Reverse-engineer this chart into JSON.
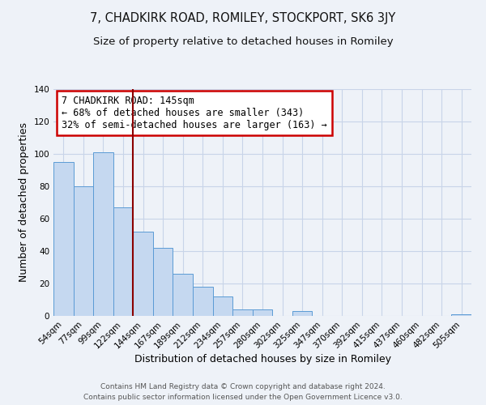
{
  "title": "7, CHADKIRK ROAD, ROMILEY, STOCKPORT, SK6 3JY",
  "subtitle": "Size of property relative to detached houses in Romiley",
  "xlabel": "Distribution of detached houses by size in Romiley",
  "ylabel": "Number of detached properties",
  "categories": [
    "54sqm",
    "77sqm",
    "99sqm",
    "122sqm",
    "144sqm",
    "167sqm",
    "189sqm",
    "212sqm",
    "234sqm",
    "257sqm",
    "280sqm",
    "302sqm",
    "325sqm",
    "347sqm",
    "370sqm",
    "392sqm",
    "415sqm",
    "437sqm",
    "460sqm",
    "482sqm",
    "505sqm"
  ],
  "values": [
    95,
    80,
    101,
    67,
    52,
    42,
    26,
    18,
    12,
    4,
    4,
    0,
    3,
    0,
    0,
    0,
    0,
    0,
    0,
    0,
    1
  ],
  "bar_color": "#c5d8f0",
  "bar_edge_color": "#5b9bd5",
  "vline_x": 3.5,
  "vline_color": "#8b0000",
  "annotation_text": "7 CHADKIRK ROAD: 145sqm\n← 68% of detached houses are smaller (343)\n32% of semi-detached houses are larger (163) →",
  "annotation_box_color": "#ffffff",
  "annotation_box_edge_color": "#cc0000",
  "ylim": [
    0,
    140
  ],
  "yticks": [
    0,
    20,
    40,
    60,
    80,
    100,
    120,
    140
  ],
  "footer_line1": "Contains HM Land Registry data © Crown copyright and database right 2024.",
  "footer_line2": "Contains public sector information licensed under the Open Government Licence v3.0.",
  "bg_color": "#eef2f8",
  "plot_bg_color": "#eef2f8",
  "grid_color": "#c8d4e8",
  "title_fontsize": 10.5,
  "subtitle_fontsize": 9.5,
  "axis_label_fontsize": 9,
  "tick_fontsize": 7.5,
  "footer_fontsize": 6.5,
  "ann_fontsize": 8.5
}
